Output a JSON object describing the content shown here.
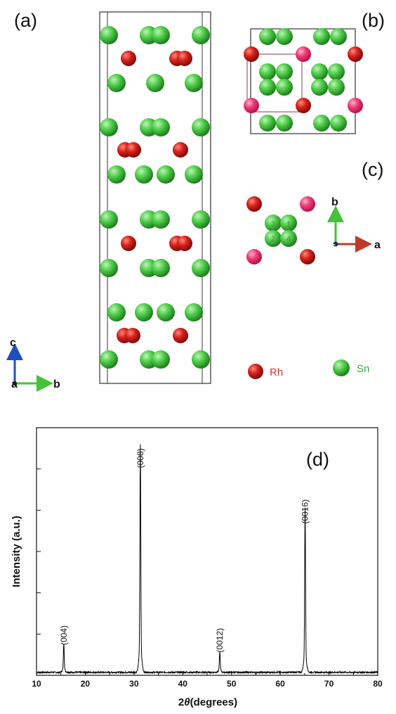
{
  "panels": {
    "a": "(a)",
    "b": "(b)",
    "c": "(c)",
    "d": "(d)"
  },
  "axes_a": {
    "vertical": "c",
    "origin": "a",
    "horizontal": "b"
  },
  "axes_c": {
    "vertical": "b",
    "origin": "c",
    "horizontal": "a"
  },
  "legend": {
    "rh": {
      "label": "Rh",
      "color": "#cc1f1a"
    },
    "sn": {
      "label": "Sn",
      "color": "#3dbb3d"
    }
  },
  "atom_numbers": [
    "3",
    "1",
    "2",
    "4"
  ],
  "colors": {
    "rh": "#c81e1a",
    "rh_light": "#ee3a74",
    "sn": "#3fbf3f",
    "frame": "#333333"
  },
  "chart_data": {
    "type": "line",
    "title": "",
    "xlabel": "2θ(degrees)",
    "xlabel_prefix": "2",
    "xlabel_theta": "θ",
    "xlabel_suffix": "(degrees)",
    "ylabel": "Intensity (a.u.)",
    "xlim": [
      10,
      80
    ],
    "ylim": [
      0,
      1.0
    ],
    "xticks": [
      "10",
      "20",
      "30",
      "40",
      "50",
      "60",
      "70",
      "80"
    ],
    "ytick_count": 6,
    "baseline": 0.012,
    "peaks": [
      {
        "x": 15.6,
        "y": 0.105,
        "label": "(004)"
      },
      {
        "x": 31.3,
        "y": 0.82,
        "label": "(008)"
      },
      {
        "x": 47.6,
        "y": 0.075,
        "label": "(0012)"
      },
      {
        "x": 65.1,
        "y": 0.595,
        "label": "(0016)"
      }
    ],
    "grid": false
  }
}
